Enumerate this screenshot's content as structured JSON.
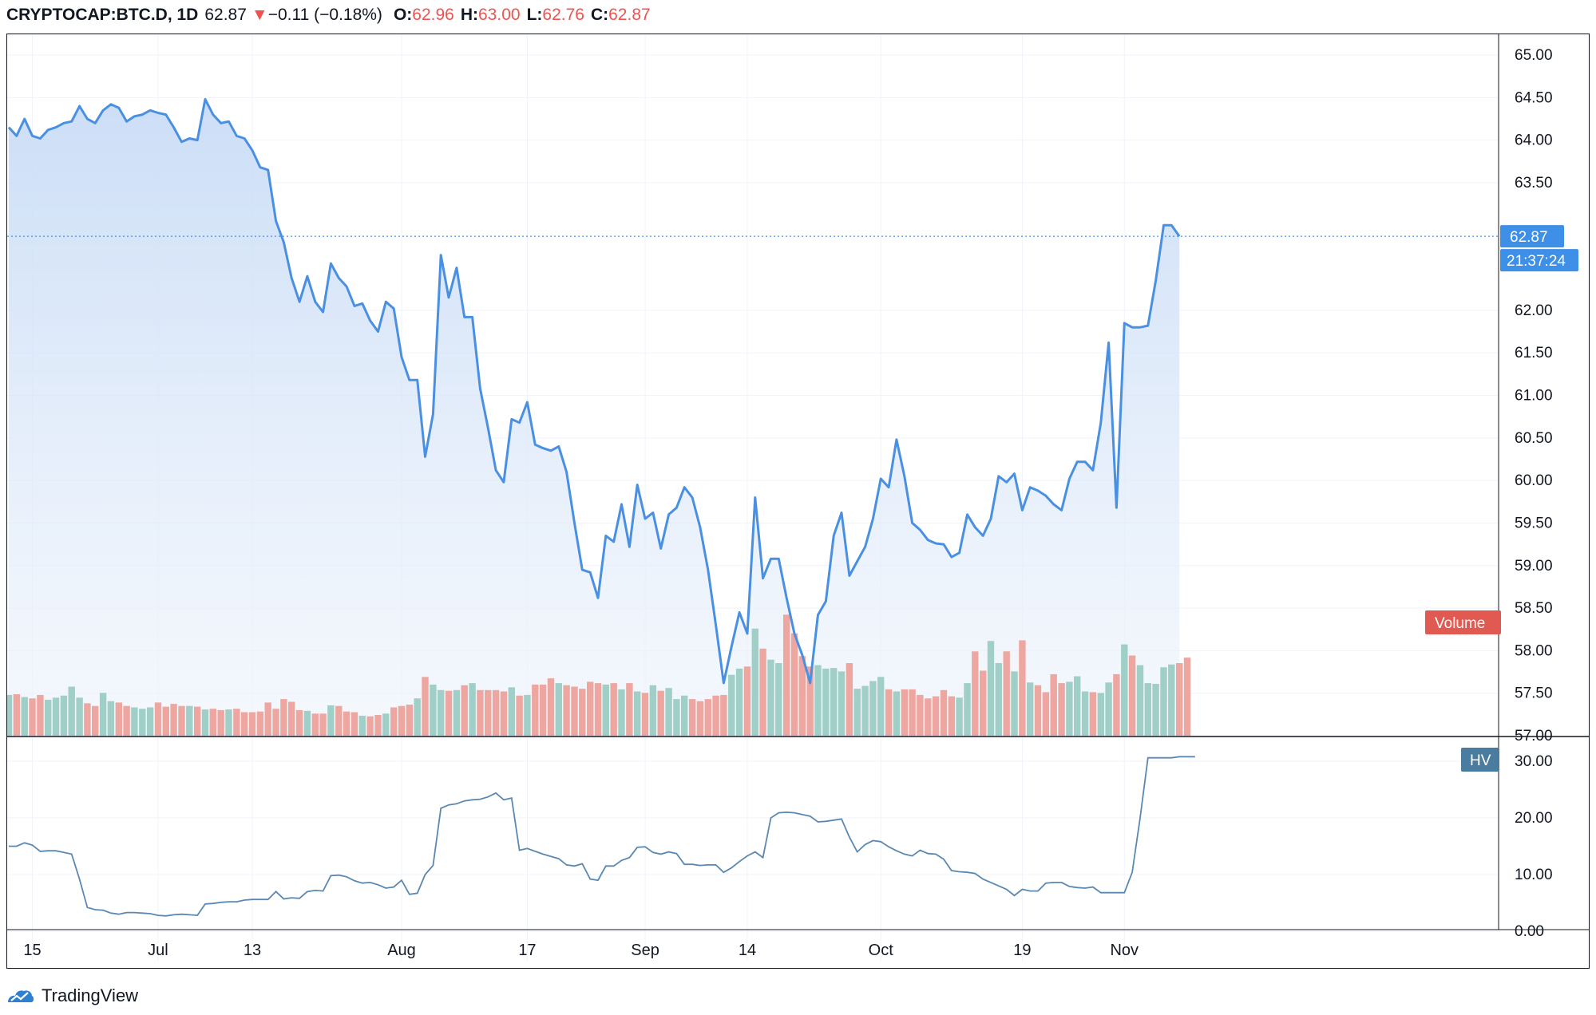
{
  "header": {
    "symbol": "CRYPTOCAP:BTC.D, 1D",
    "last": "62.87",
    "change_arrow": "▼",
    "change": "−0.11 (−0.18%)",
    "o_label": "O:",
    "o_value": "62.96",
    "h_label": "H:",
    "h_value": "63.00",
    "l_label": "L:",
    "l_value": "62.76",
    "c_label": "C:",
    "c_value": "62.87"
  },
  "price_label": "62.87",
  "countdown_label": "21:37:24",
  "volume_label": "Volume",
  "hv_label": "HV",
  "brand": "TradingView",
  "colors": {
    "line": "#4a90e2",
    "area_top": "#cfe2f7",
    "volume_up": "#9fcfc7",
    "volume_down": "#eea6a1",
    "hv_line": "#5b88b0",
    "price_tag": "#3d8fe8",
    "volume_tag": "#e05a51",
    "hv_tag": "#4a7ca0"
  },
  "chart_data": [
    {
      "type": "area",
      "title": "",
      "y_ticks": [
        "65.00",
        "64.50",
        "64.00",
        "63.50",
        "62.00",
        "61.50",
        "61.00",
        "60.50",
        "60.00",
        "59.50",
        "59.00",
        "58.50",
        "58.00",
        "57.50",
        "57.00"
      ],
      "ylim": [
        57.0,
        65.0
      ],
      "x_ticks": [
        {
          "label": "15",
          "day": 3
        },
        {
          "label": "Jul",
          "day": 19
        },
        {
          "label": "13",
          "day": 31
        },
        {
          "label": "Aug",
          "day": 50
        },
        {
          "label": "17",
          "day": 66
        },
        {
          "label": "Sep",
          "day": 81
        },
        {
          "label": "14",
          "day": 94
        },
        {
          "label": "Oct",
          "day": 111
        },
        {
          "label": "19",
          "day": 129
        },
        {
          "label": "Nov",
          "day": 142
        }
      ],
      "last_value": 62.87,
      "series": [
        {
          "values": [
            64.15,
            64.05,
            64.25,
            64.05,
            64.02,
            64.12,
            64.15,
            64.2,
            64.22,
            64.4,
            64.25,
            64.2,
            64.35,
            64.42,
            64.38,
            64.22,
            64.28,
            64.3,
            64.35,
            64.32,
            64.3,
            64.15,
            63.98,
            64.02,
            64.0,
            64.48,
            64.3,
            64.2,
            64.22,
            64.05,
            64.02,
            63.88,
            63.68,
            63.65,
            63.05,
            62.8,
            62.38,
            62.1,
            62.4,
            62.1,
            61.98,
            62.55,
            62.38,
            62.28,
            62.05,
            62.08,
            61.88,
            61.75,
            62.1,
            62.02,
            61.45,
            61.18,
            61.18,
            60.28,
            60.78,
            62.65,
            62.15,
            62.5,
            61.92,
            61.92,
            61.08,
            60.62,
            60.12,
            59.98,
            60.72,
            60.68,
            60.92,
            60.42,
            60.38,
            60.35,
            60.4,
            60.1,
            59.5,
            58.95,
            58.92,
            58.62,
            59.35,
            59.28,
            59.72,
            59.22,
            59.95,
            59.55,
            59.62,
            59.2,
            59.6,
            59.68,
            59.92,
            59.8,
            59.45,
            58.95,
            58.3,
            57.62,
            58.05,
            58.45,
            58.2,
            59.8,
            58.85,
            59.08,
            59.08,
            58.62,
            58.2,
            57.95,
            57.62,
            58.42,
            58.58,
            59.35,
            59.62,
            58.88,
            59.05,
            59.22,
            59.55,
            60.02,
            59.92,
            60.48,
            60.05,
            59.5,
            59.42,
            59.3,
            59.26,
            59.25,
            59.1,
            59.15,
            59.6,
            59.45,
            59.35,
            59.55,
            60.05,
            59.98,
            60.08,
            59.65,
            59.92,
            59.88,
            59.82,
            59.72,
            59.65,
            60.02,
            60.22,
            60.22,
            60.12,
            60.68,
            61.62,
            59.68,
            61.85,
            61.8,
            61.8,
            61.82,
            62.35,
            63.0,
            63.0,
            62.87
          ]
        }
      ]
    },
    {
      "type": "bar",
      "name": "Volume",
      "colors_by_direction": true,
      "series": [
        {
          "values": [
            5.9,
            6.0,
            5.6,
            5.4,
            5.9,
            5.2,
            5.5,
            5.8,
            7.1,
            5.5,
            4.7,
            4.3,
            6.2,
            5.0,
            4.8,
            4.3,
            4.1,
            3.9,
            4.1,
            4.8,
            4.2,
            4.6,
            4.3,
            4.3,
            4.2,
            3.8,
            3.9,
            3.7,
            3.8,
            3.9,
            3.4,
            3.4,
            3.5,
            4.8,
            3.9,
            5.3,
            4.9,
            3.7,
            3.6,
            3.2,
            3.2,
            4.4,
            4.3,
            3.5,
            3.4,
            2.9,
            2.8,
            3.0,
            3.2,
            4.1,
            4.3,
            4.5,
            5.4,
            8.5,
            7.4,
            6.6,
            6.5,
            6.6,
            7.3,
            7.6,
            6.6,
            6.6,
            6.6,
            6.4,
            7.0,
            5.8,
            5.9,
            7.4,
            7.4,
            8.3,
            7.6,
            7.3,
            7.1,
            6.8,
            7.8,
            7.6,
            7.4,
            7.6,
            6.7,
            7.6,
            6.4,
            6.2,
            7.3,
            6.5,
            6.9,
            5.3,
            5.8,
            5.3,
            5.0,
            5.3,
            5.8,
            5.9,
            8.8,
            9.7,
            10.0,
            15.5,
            12.6,
            11.0,
            10.5,
            17.5,
            14.8,
            11.5,
            10.0,
            10.2,
            9.7,
            9.8,
            9.3,
            10.5,
            6.8,
            7.2,
            7.9,
            8.5,
            6.7,
            6.4,
            6.7,
            6.7,
            5.9,
            5.4,
            5.7,
            6.6,
            5.7,
            5.5,
            7.6,
            12.2,
            9.4,
            13.7,
            10.5,
            12.2,
            9.3,
            13.8,
            7.7,
            7.3,
            6.3,
            8.9,
            7.6,
            7.8,
            8.6,
            6.4,
            6.3,
            6.2,
            7.7,
            8.9,
            13.2,
            11.6,
            10.2,
            7.6,
            7.5,
            9.9,
            10.3,
            10.5,
            11.3
          ]
        }
      ]
    },
    {
      "type": "line",
      "name": "HV",
      "y_ticks": [
        "30.00",
        "20.00",
        "10.00",
        "0.00"
      ],
      "ylim": [
        0,
        33
      ],
      "series": [
        {
          "values": [
            15.0,
            15.0,
            15.6,
            15.2,
            14.1,
            14.2,
            14.2,
            13.9,
            13.6,
            9.2,
            4.2,
            3.8,
            3.7,
            3.2,
            3.0,
            3.3,
            3.3,
            3.2,
            3.1,
            2.8,
            2.7,
            2.9,
            3.0,
            2.9,
            2.8,
            4.8,
            4.9,
            5.1,
            5.2,
            5.2,
            5.5,
            5.6,
            5.6,
            5.6,
            7.0,
            5.7,
            5.9,
            5.8,
            7.0,
            7.2,
            7.1,
            9.8,
            9.9,
            9.6,
            8.9,
            8.5,
            8.6,
            8.2,
            7.6,
            7.8,
            9.0,
            6.5,
            6.7,
            10.0,
            11.6,
            21.7,
            22.3,
            22.5,
            23.0,
            23.2,
            23.3,
            23.7,
            24.4,
            23.2,
            23.5,
            14.3,
            14.6,
            14.1,
            13.6,
            13.2,
            12.8,
            11.7,
            11.5,
            11.9,
            9.2,
            9.0,
            11.5,
            11.5,
            12.5,
            13.0,
            14.8,
            14.9,
            13.9,
            13.6,
            14.0,
            13.7,
            11.8,
            11.8,
            11.6,
            11.7,
            11.7,
            10.4,
            11.2,
            12.3,
            13.3,
            14.0,
            13.0,
            20.0,
            20.9,
            21.0,
            20.9,
            20.6,
            20.3,
            19.3,
            19.4,
            19.6,
            19.8,
            16.6,
            14.0,
            15.3,
            16.0,
            15.8,
            14.9,
            14.2,
            13.6,
            13.3,
            14.3,
            13.7,
            13.6,
            12.7,
            10.7,
            10.5,
            10.4,
            10.2,
            9.2,
            8.6,
            8.0,
            7.4,
            6.3,
            7.4,
            7.1,
            7.1,
            8.5,
            8.6,
            8.6,
            7.9,
            7.7,
            7.6,
            7.8,
            6.8,
            6.8,
            6.8,
            6.8,
            10.4,
            20.0,
            30.6,
            30.6,
            30.6,
            30.6,
            30.8,
            30.8,
            30.8
          ]
        }
      ]
    }
  ]
}
